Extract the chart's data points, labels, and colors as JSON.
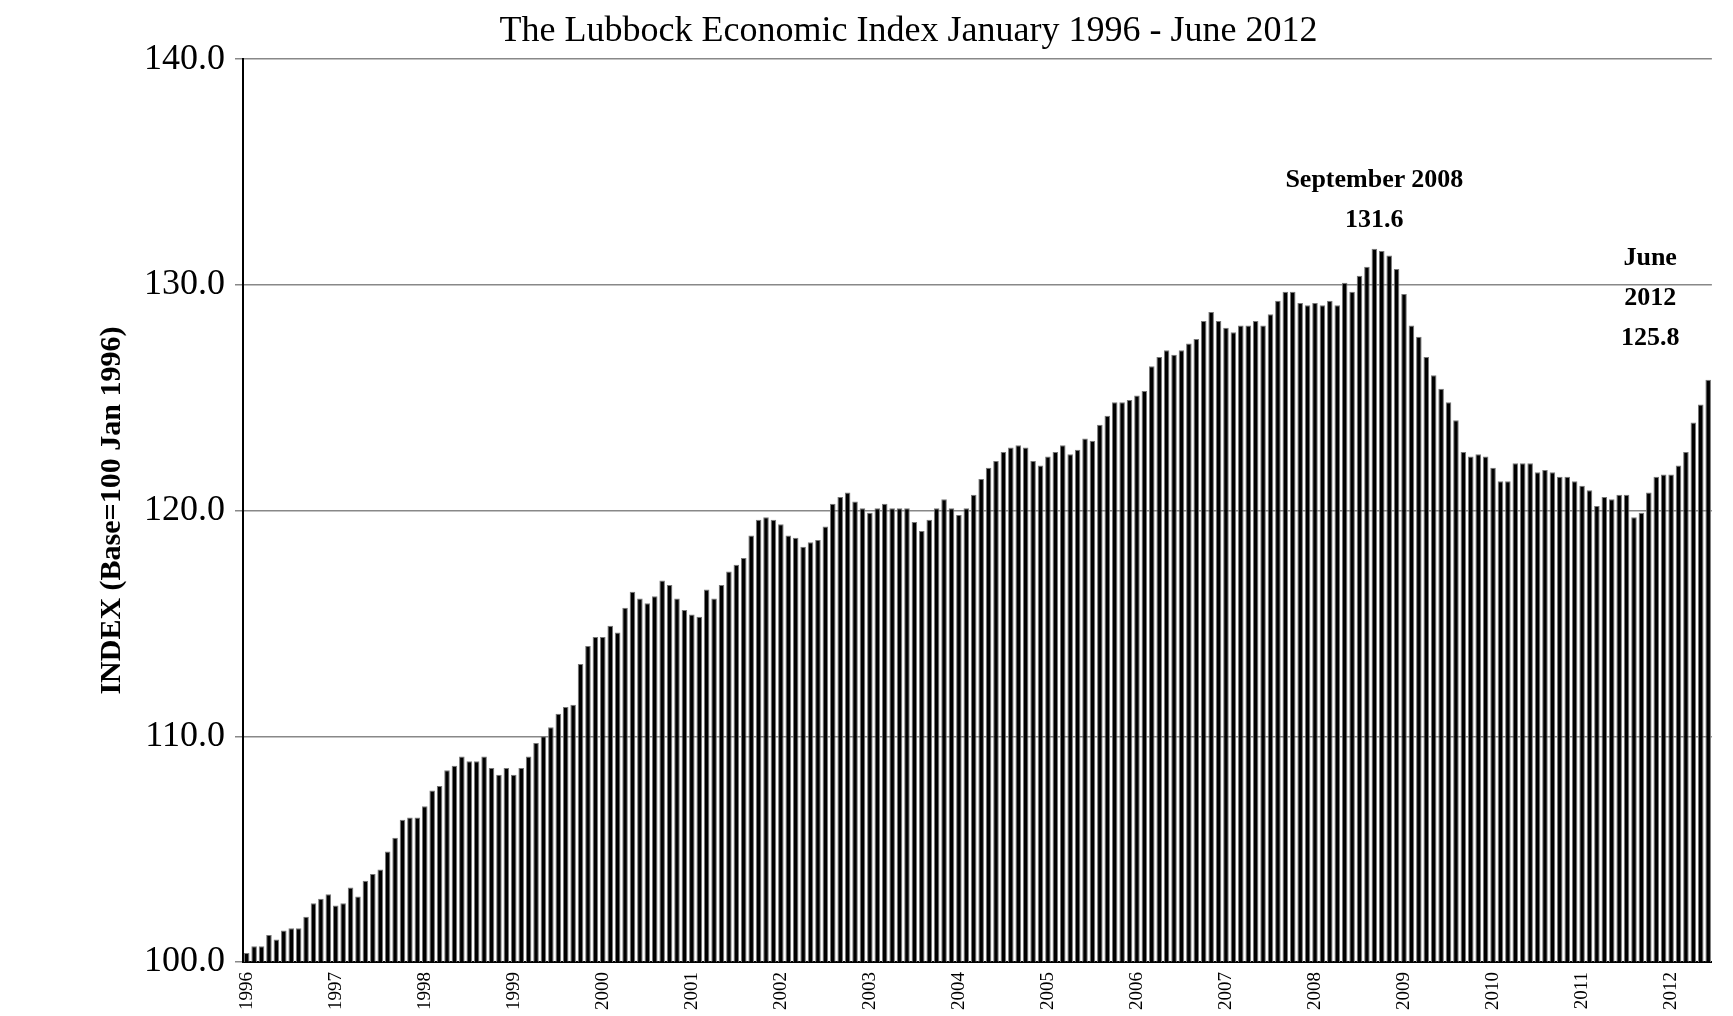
{
  "chart_data": {
    "type": "bar",
    "title": "The Lubbock Economic Index January 1996 - June 2012",
    "ylabel": "INDEX (Base=100 Jan 1996)",
    "categories": [
      "1996",
      null,
      null,
      null,
      null,
      null,
      null,
      null,
      null,
      null,
      null,
      null,
      "1997",
      null,
      null,
      null,
      null,
      null,
      null,
      null,
      null,
      null,
      null,
      null,
      "1998",
      null,
      null,
      null,
      null,
      null,
      null,
      null,
      null,
      null,
      null,
      null,
      "1999",
      null,
      null,
      null,
      null,
      null,
      null,
      null,
      null,
      null,
      null,
      null,
      "2000",
      null,
      null,
      null,
      null,
      null,
      null,
      null,
      null,
      null,
      null,
      null,
      "2001",
      null,
      null,
      null,
      null,
      null,
      null,
      null,
      null,
      null,
      null,
      null,
      "2002",
      null,
      null,
      null,
      null,
      null,
      null,
      null,
      null,
      null,
      null,
      null,
      "2003",
      null,
      null,
      null,
      null,
      null,
      null,
      null,
      null,
      null,
      null,
      null,
      "2004",
      null,
      null,
      null,
      null,
      null,
      null,
      null,
      null,
      null,
      null,
      null,
      "2005",
      null,
      null,
      null,
      null,
      null,
      null,
      null,
      null,
      null,
      null,
      null,
      "2006",
      null,
      null,
      null,
      null,
      null,
      null,
      null,
      null,
      null,
      null,
      null,
      "2007",
      null,
      null,
      null,
      null,
      null,
      null,
      null,
      null,
      null,
      null,
      null,
      "2008",
      null,
      null,
      null,
      null,
      null,
      null,
      null,
      null,
      null,
      null,
      null,
      "2009",
      null,
      null,
      null,
      null,
      null,
      null,
      null,
      null,
      null,
      null,
      null,
      "2010",
      null,
      null,
      null,
      null,
      null,
      null,
      null,
      null,
      null,
      null,
      null,
      "2011",
      null,
      null,
      null,
      null,
      null,
      null,
      null,
      null,
      null,
      null,
      null,
      "2012",
      null,
      null,
      null,
      null,
      null
    ],
    "values": [
      100.4,
      100.7,
      100.7,
      101.2,
      101.0,
      101.4,
      101.5,
      101.5,
      102.0,
      102.6,
      102.8,
      103.0,
      102.5,
      102.6,
      103.3,
      102.9,
      103.6,
      103.9,
      104.1,
      104.9,
      105.5,
      106.3,
      106.4,
      106.4,
      106.9,
      107.6,
      107.8,
      108.5,
      108.7,
      109.1,
      108.9,
      108.9,
      109.1,
      108.6,
      108.3,
      108.6,
      108.3,
      108.6,
      109.1,
      109.7,
      110.0,
      110.4,
      111.0,
      111.3,
      111.4,
      113.2,
      114.0,
      114.4,
      114.4,
      114.9,
      114.6,
      115.7,
      116.4,
      116.1,
      115.9,
      116.2,
      116.9,
      116.7,
      116.1,
      115.6,
      115.4,
      115.3,
      116.5,
      116.1,
      116.7,
      117.3,
      117.6,
      117.9,
      118.9,
      119.6,
      119.7,
      119.6,
      119.4,
      118.9,
      118.8,
      118.4,
      118.6,
      118.7,
      119.3,
      120.3,
      120.6,
      120.8,
      120.4,
      120.1,
      119.9,
      120.1,
      120.3,
      120.1,
      120.1,
      120.1,
      119.5,
      119.1,
      119.6,
      120.1,
      120.5,
      120.1,
      119.8,
      120.1,
      120.7,
      121.4,
      121.9,
      122.2,
      122.6,
      122.8,
      122.9,
      122.8,
      122.2,
      122.0,
      122.4,
      122.6,
      122.9,
      122.5,
      122.7,
      123.2,
      123.1,
      123.8,
      124.2,
      124.8,
      124.8,
      124.9,
      125.1,
      125.3,
      126.4,
      126.8,
      127.1,
      126.9,
      127.1,
      127.4,
      127.6,
      128.4,
      128.8,
      128.4,
      128.1,
      127.9,
      128.2,
      128.2,
      128.4,
      128.2,
      128.7,
      129.3,
      129.7,
      129.7,
      129.2,
      129.1,
      129.2,
      129.1,
      129.3,
      129.1,
      130.1,
      129.7,
      130.4,
      130.8,
      131.6,
      131.5,
      131.3,
      130.7,
      129.6,
      128.2,
      127.7,
      126.8,
      126.0,
      125.4,
      124.8,
      124.0,
      122.6,
      122.4,
      122.5,
      122.4,
      121.9,
      121.3,
      121.3,
      122.1,
      122.1,
      122.1,
      121.7,
      121.8,
      121.7,
      121.5,
      121.5,
      121.3,
      121.1,
      120.9,
      120.2,
      120.6,
      120.5,
      120.7,
      120.7,
      119.7,
      119.9,
      120.8,
      121.5,
      121.6,
      121.6,
      122.0,
      122.6,
      123.9,
      124.7,
      125.8
    ],
    "color": "#000000",
    "ylim": [
      100,
      140
    ],
    "yticks": [
      {
        "value": 100,
        "label": "100.0"
      },
      {
        "value": 110,
        "label": "110.0"
      },
      {
        "value": 120,
        "label": "120.0"
      },
      {
        "value": 130,
        "label": "130.0"
      },
      {
        "value": 140,
        "label": "140.0"
      }
    ],
    "grid": "y",
    "legend": false,
    "annotations": [
      "September 2008\n131.6",
      "June\n2012\n125.8"
    ]
  }
}
